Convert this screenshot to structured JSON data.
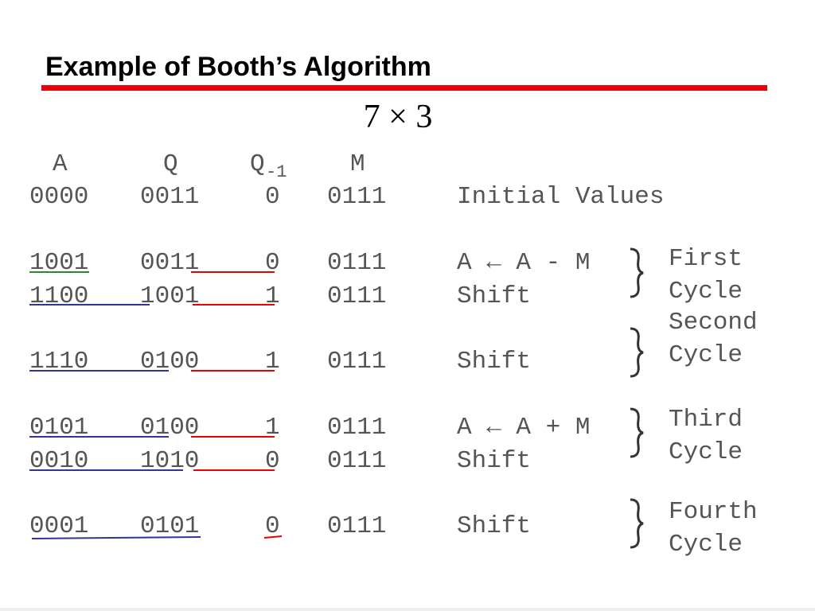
{
  "header": {
    "title": "Example of Booth’s Algorithm",
    "subtitle": "7 × 3"
  },
  "table": {
    "columns": {
      "a": "A",
      "q": "Q",
      "q1": "Q",
      "q1_sub": "-1",
      "m": "M"
    },
    "rows": [
      [
        "0000",
        "0011",
        "0",
        "0111",
        "Initial Values"
      ],
      [
        "1001",
        "0011",
        "0",
        "0111",
        "A ← A - M"
      ],
      [
        "1100",
        "1001",
        "1",
        "0111",
        "Shift"
      ],
      [
        "1110",
        "0100",
        "1",
        "0111",
        "Shift"
      ],
      [
        "0101",
        "0100",
        "1",
        "0111",
        "A ← A + M"
      ],
      [
        "0010",
        "1010",
        "0",
        "0111",
        "Shift"
      ],
      [
        "0001",
        "0101",
        "0",
        "0111",
        "Shift"
      ]
    ]
  },
  "cycles": [
    [
      "First",
      "Cycle"
    ],
    [
      "Second",
      "Cycle"
    ],
    [
      "Third",
      "Cycle"
    ],
    [
      "Fourth",
      "Cycle"
    ]
  ]
}
